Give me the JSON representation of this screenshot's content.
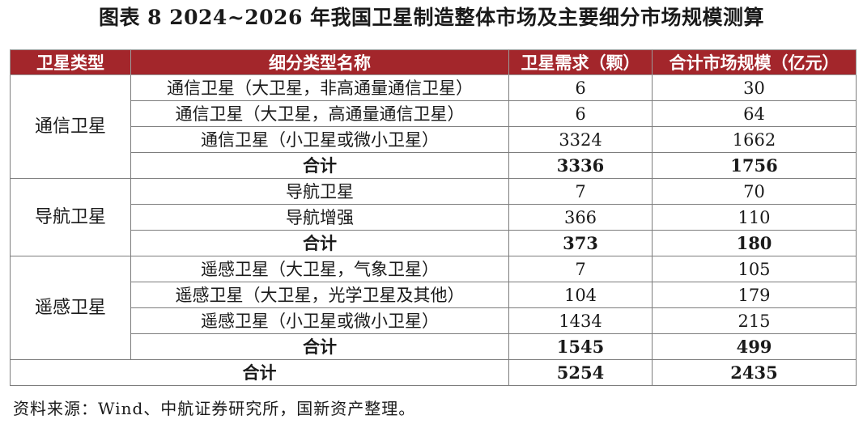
{
  "title": "图表 8  2024~2026 年我国卫星制造整体市场及主要细分市场规模测算",
  "table": {
    "headers": [
      "卫星类型",
      "细分类型名称",
      "卫星需求（颗）",
      "合计市场规模（亿元）"
    ],
    "groups": [
      {
        "type": "通信卫星",
        "rows": [
          {
            "name": "通信卫星（大卫星，非高通量通信卫星）",
            "demand": "6",
            "market": "30"
          },
          {
            "name": "通信卫星（大卫星，高通量通信卫星）",
            "demand": "6",
            "market": "64"
          },
          {
            "name": "通信卫星（小卫星或微小卫星）",
            "demand": "3324",
            "market": "1662"
          },
          {
            "name": "合计",
            "demand": "3336",
            "market": "1756"
          }
        ]
      },
      {
        "type": "导航卫星",
        "rows": [
          {
            "name": "导航卫星",
            "demand": "7",
            "market": "70"
          },
          {
            "name": "导航增强",
            "demand": "366",
            "market": "110"
          },
          {
            "name": "合计",
            "demand": "373",
            "market": "180"
          }
        ]
      },
      {
        "type": "遥感卫星",
        "rows": [
          {
            "name": "遥感卫星（大卫星，气象卫星）",
            "demand": "7",
            "market": "105"
          },
          {
            "name": "遥感卫星（大卫星，光学卫星及其他）",
            "demand": "104",
            "market": "179"
          },
          {
            "name": "遥感卫星（小卫星或微小卫星）",
            "demand": "1434",
            "market": "215"
          },
          {
            "name": "合计",
            "demand": "1545",
            "market": "499"
          }
        ]
      }
    ],
    "total": {
      "label": "合计",
      "demand": "5254",
      "market": "2435"
    }
  },
  "source": "资料来源：Wind、中航证券研究所，国新资产整理。",
  "colors": {
    "header_bg": "#a3262b",
    "header_text": "#ffffff",
    "border": "#7d7d7d"
  }
}
